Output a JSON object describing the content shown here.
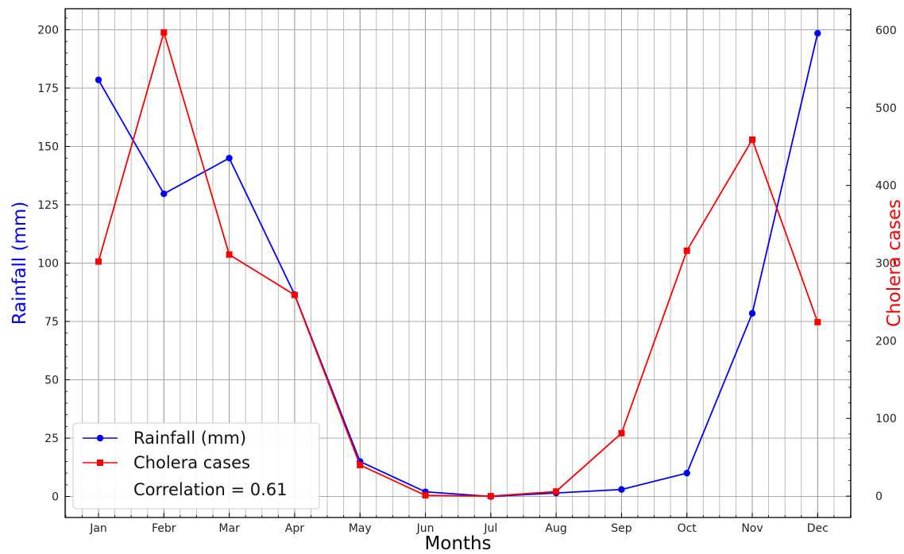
{
  "chart_data": {
    "type": "line",
    "categories": [
      "Jan",
      "Febr",
      "Mar",
      "Apr",
      "May",
      "Jun",
      "Jul",
      "Aug",
      "Sep",
      "Oct",
      "Nov",
      "Dec"
    ],
    "series": [
      {
        "name": "Rainfall (mm)",
        "axis": "left",
        "color": "#0000ff",
        "marker": "circle",
        "values": [
          178.5,
          129.7,
          145.0,
          86.5,
          15.0,
          2.0,
          0.0,
          1.5,
          3.0,
          10.0,
          78.5,
          198.5
        ]
      },
      {
        "name": "Cholera cases",
        "axis": "right",
        "color": "#ff0000",
        "marker": "square",
        "values": [
          302,
          597,
          311,
          259,
          40,
          1,
          0,
          6,
          81,
          316,
          459,
          224
        ]
      }
    ],
    "xlabel": "Months",
    "ylabel": "Rainfall (mm)",
    "y2label": "Cholera cases",
    "ylim": [
      -9,
      209
    ],
    "y2lim": [
      -27.5,
      627.5
    ],
    "yticks": [
      0,
      25,
      50,
      75,
      100,
      125,
      150,
      175,
      200
    ],
    "y2ticks": [
      0,
      100,
      200,
      300,
      400,
      500,
      600
    ],
    "grid": true,
    "legend": {
      "placement": "lower-left",
      "entries": [
        "Rainfall (mm)",
        "Cholera cases"
      ],
      "annotation": "Correlation = 0.61"
    }
  }
}
